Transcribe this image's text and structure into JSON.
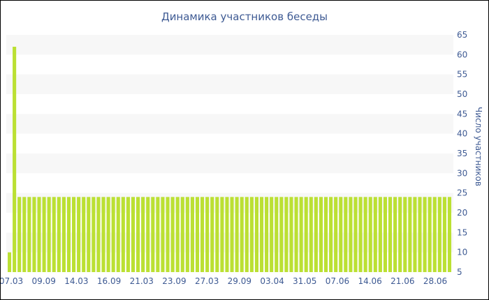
{
  "chart_data": {
    "type": "bar",
    "title": "Динамика участников беседы",
    "ylabel": "Число участников",
    "xlabel": "",
    "ylim": [
      5,
      65
    ],
    "yticks": [
      5,
      10,
      15,
      20,
      25,
      30,
      35,
      40,
      45,
      50,
      55,
      60,
      65
    ],
    "x_tick_labels": [
      "07.03",
      "09.09",
      "14.03",
      "16.09",
      "21.03",
      "23.09",
      "27.03",
      "29.09",
      "03.04",
      "31.05",
      "07.06",
      "14.06",
      "21.06",
      "28.06"
    ],
    "y_axis_position": "right",
    "grid": "horizontal bands",
    "legend": "none",
    "series": [
      {
        "values": [
          10,
          62,
          24,
          24,
          24,
          24,
          24,
          24,
          24,
          24,
          24,
          24,
          24,
          24,
          24,
          24,
          24,
          24,
          24,
          24,
          24,
          24,
          24,
          24,
          24,
          24,
          24,
          24,
          24,
          24,
          24,
          24,
          24,
          24,
          24,
          24,
          24,
          24,
          24,
          24,
          24,
          24,
          24,
          24,
          24,
          24,
          24,
          24,
          24,
          24,
          24,
          24,
          24,
          24,
          24,
          24,
          24,
          24,
          24,
          24,
          24,
          24,
          24,
          24,
          24,
          24,
          24,
          24,
          24,
          24,
          24,
          24,
          24,
          24,
          24,
          24,
          24,
          24,
          24,
          24,
          24,
          24,
          24,
          24,
          24,
          24,
          24,
          24,
          24,
          24
        ]
      }
    ],
    "colors": {
      "bar": "#bbe033",
      "band": "#f7f7f7",
      "text": "#3e5a93",
      "border": "#000000"
    }
  }
}
